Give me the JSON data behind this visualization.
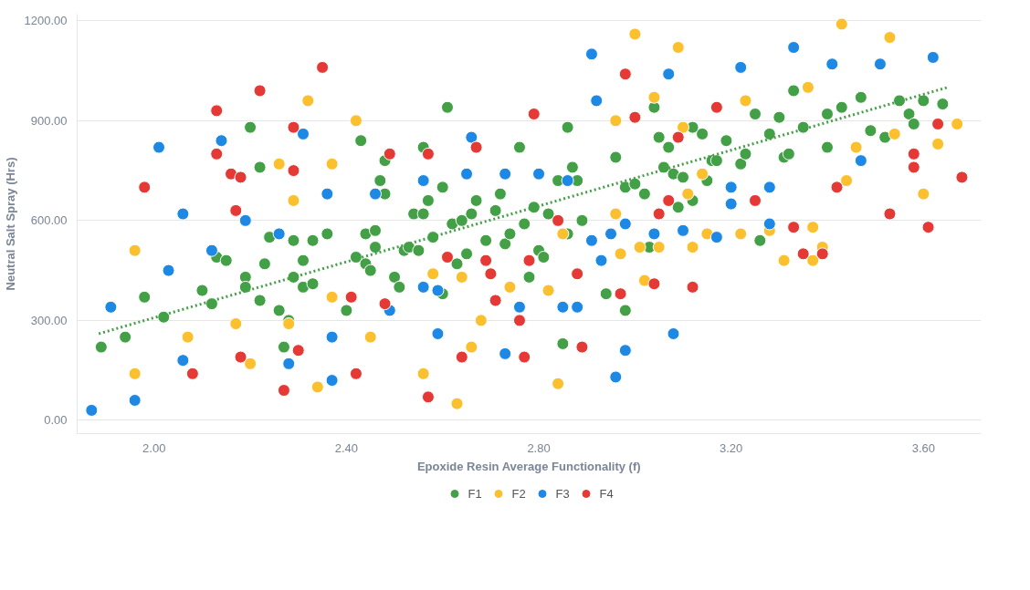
{
  "chart_data": {
    "type": "scatter",
    "xlabel": "Epoxide Resin Average Functionality (f)",
    "ylabel": "Neutral Salt Spray (Hrs)",
    "xlim": [
      1.84,
      3.72
    ],
    "ylim": [
      -40,
      1220
    ],
    "xticks": [
      {
        "value": 2.0,
        "label": "2.00"
      },
      {
        "value": 2.4,
        "label": "2.40"
      },
      {
        "value": 2.8,
        "label": "2.80"
      },
      {
        "value": 3.2,
        "label": "3.20"
      },
      {
        "value": 3.6,
        "label": "3.60"
      }
    ],
    "yticks": [
      {
        "value": 0,
        "label": "0.00"
      },
      {
        "value": 300,
        "label": "300.00"
      },
      {
        "value": 600,
        "label": "600.00"
      },
      {
        "value": 900,
        "label": "900.00"
      },
      {
        "value": 1200,
        "label": "1200.00"
      }
    ],
    "grid": "y",
    "legend": "bottom",
    "marker": "circle",
    "series": [
      {
        "name": "F1",
        "color": "#43a047",
        "x": [
          1.89,
          1.94,
          1.98,
          2.02,
          2.1,
          2.12,
          2.13,
          2.15,
          2.19,
          2.19,
          2.2,
          2.22,
          2.22,
          2.23,
          2.24,
          2.26,
          2.27,
          2.28,
          2.29,
          2.29,
          2.31,
          2.31,
          2.33,
          2.33,
          2.36,
          2.4,
          2.42,
          2.43,
          2.44,
          2.44,
          2.45,
          2.46,
          2.46,
          2.47,
          2.48,
          2.48,
          2.5,
          2.51,
          2.52,
          2.53,
          2.54,
          2.55,
          2.56,
          2.56,
          2.57,
          2.58,
          2.6,
          2.6,
          2.61,
          2.62,
          2.63,
          2.64,
          2.65,
          2.66,
          2.67,
          2.69,
          2.71,
          2.72,
          2.73,
          2.74,
          2.76,
          2.77,
          2.78,
          2.79,
          2.8,
          2.81,
          2.82,
          2.84,
          2.85,
          2.86,
          2.86,
          2.87,
          2.88,
          2.89,
          2.94,
          2.96,
          2.98,
          2.98,
          3.0,
          3.02,
          3.03,
          3.04,
          3.05,
          3.06,
          3.07,
          3.08,
          3.09,
          3.1,
          3.12,
          3.12,
          3.14,
          3.15,
          3.16,
          3.17,
          3.19,
          3.22,
          3.23,
          3.25,
          3.26,
          3.28,
          3.3,
          3.31,
          3.32,
          3.33,
          3.35,
          3.4,
          3.4,
          3.43,
          3.47,
          3.49,
          3.52,
          3.55,
          3.57,
          3.58,
          3.6,
          3.64
        ],
        "values": [
          220,
          250,
          370,
          310,
          390,
          350,
          490,
          480,
          430,
          400,
          880,
          360,
          760,
          470,
          550,
          330,
          220,
          300,
          430,
          540,
          400,
          480,
          410,
          540,
          560,
          330,
          490,
          840,
          470,
          560,
          450,
          520,
          570,
          720,
          680,
          780,
          430,
          400,
          510,
          520,
          620,
          510,
          620,
          820,
          660,
          550,
          700,
          380,
          940,
          590,
          470,
          600,
          500,
          620,
          660,
          540,
          630,
          680,
          530,
          560,
          820,
          590,
          430,
          640,
          510,
          490,
          620,
          720,
          230,
          880,
          560,
          760,
          720,
          600,
          380,
          790,
          700,
          330,
          710,
          680,
          520,
          940,
          850,
          760,
          820,
          740,
          640,
          730,
          660,
          880,
          860,
          720,
          780,
          780,
          840,
          770,
          800,
          920,
          540,
          860,
          910,
          790,
          800,
          990,
          880,
          920,
          820,
          940,
          970,
          870,
          850,
          960,
          920,
          890,
          960,
          950
        ]
      },
      {
        "name": "F2",
        "color": "#fbc02d",
        "x": [
          1.96,
          1.96,
          2.07,
          2.17,
          2.2,
          2.26,
          2.28,
          2.29,
          2.32,
          2.34,
          2.37,
          2.37,
          2.42,
          2.45,
          2.56,
          2.58,
          2.63,
          2.64,
          2.66,
          2.68,
          2.74,
          2.82,
          2.84,
          2.85,
          2.96,
          2.96,
          2.97,
          3.0,
          3.01,
          3.02,
          3.04,
          3.05,
          3.09,
          3.1,
          3.11,
          3.12,
          3.14,
          3.15,
          3.22,
          3.23,
          3.28,
          3.31,
          3.36,
          3.37,
          3.37,
          3.39,
          3.43,
          3.44,
          3.46,
          3.53,
          3.54,
          3.6,
          3.63,
          3.67
        ],
        "values": [
          510,
          140,
          250,
          290,
          170,
          770,
          290,
          660,
          960,
          100,
          770,
          370,
          900,
          250,
          140,
          440,
          50,
          430,
          220,
          300,
          400,
          390,
          110,
          560,
          900,
          620,
          500,
          1160,
          520,
          420,
          970,
          520,
          1120,
          880,
          680,
          520,
          740,
          560,
          560,
          960,
          570,
          480,
          1000,
          580,
          480,
          520,
          1190,
          720,
          820,
          1150,
          860,
          680,
          830,
          890
        ]
      },
      {
        "name": "F3",
        "color": "#1e88e5",
        "x": [
          1.87,
          1.91,
          1.96,
          2.01,
          2.03,
          2.06,
          2.06,
          2.12,
          2.14,
          2.19,
          2.26,
          2.28,
          2.31,
          2.36,
          2.37,
          2.37,
          2.46,
          2.49,
          2.56,
          2.56,
          2.59,
          2.59,
          2.65,
          2.66,
          2.73,
          2.73,
          2.76,
          2.8,
          2.85,
          2.86,
          2.88,
          2.91,
          2.91,
          2.92,
          2.93,
          2.95,
          2.96,
          2.98,
          2.98,
          3.07,
          3.04,
          3.08,
          3.1,
          3.17,
          3.2,
          3.2,
          3.22,
          3.28,
          3.28,
          3.33,
          3.41,
          3.47,
          3.51,
          3.62
        ],
        "values": [
          30,
          340,
          60,
          820,
          450,
          620,
          180,
          510,
          840,
          600,
          560,
          170,
          860,
          680,
          250,
          120,
          680,
          330,
          720,
          400,
          390,
          260,
          740,
          850,
          740,
          200,
          340,
          740,
          340,
          720,
          340,
          1100,
          540,
          960,
          480,
          560,
          130,
          590,
          210,
          1040,
          560,
          260,
          570,
          550,
          650,
          700,
          1060,
          700,
          590,
          1120,
          1070,
          780,
          1070,
          1090
        ]
      },
      {
        "name": "F4",
        "color": "#e53935",
        "x": [
          1.98,
          2.08,
          2.13,
          2.13,
          2.16,
          2.17,
          2.18,
          2.18,
          2.22,
          2.27,
          2.29,
          2.29,
          2.3,
          2.35,
          2.41,
          2.42,
          2.48,
          2.49,
          2.57,
          2.57,
          2.61,
          2.64,
          2.67,
          2.69,
          2.7,
          2.71,
          2.76,
          2.77,
          2.78,
          2.79,
          2.84,
          2.88,
          2.89,
          2.97,
          2.98,
          3.0,
          3.04,
          3.05,
          3.09,
          3.07,
          3.12,
          3.17,
          3.25,
          3.33,
          3.35,
          3.39,
          3.42,
          3.53,
          3.58,
          3.58,
          3.61,
          3.63,
          3.68
        ],
        "values": [
          700,
          140,
          930,
          800,
          740,
          630,
          190,
          730,
          990,
          90,
          880,
          750,
          210,
          1060,
          370,
          140,
          350,
          800,
          70,
          800,
          490,
          190,
          820,
          480,
          440,
          360,
          300,
          190,
          480,
          920,
          600,
          440,
          220,
          380,
          1040,
          910,
          410,
          620,
          850,
          660,
          400,
          940,
          660,
          580,
          500,
          500,
          700,
          620,
          800,
          760,
          580,
          890,
          730
        ]
      },
      {
        "type": "line",
        "color": "#43a047",
        "line_style": "dotted",
        "marker": "none",
        "x": [
          1.885,
          3.65
        ],
        "values": [
          260,
          1000
        ]
      }
    ]
  }
}
